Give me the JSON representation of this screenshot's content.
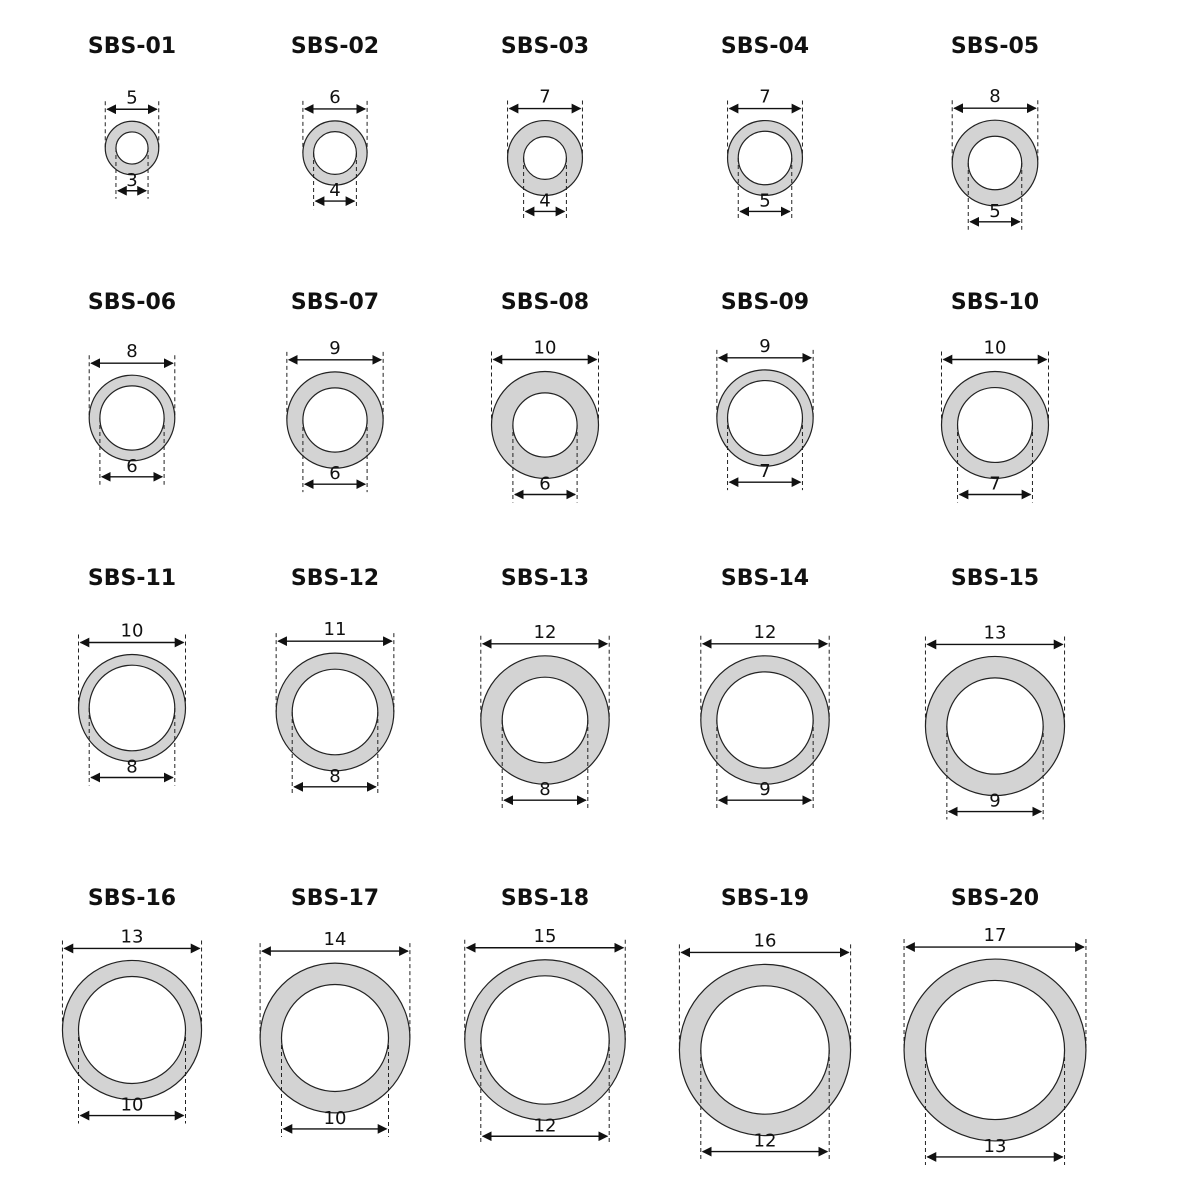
{
  "items": [
    {
      "code": "SBS-01",
      "outer": 5,
      "inner": 3
    },
    {
      "code": "SBS-02",
      "outer": 6,
      "inner": 4
    },
    {
      "code": "SBS-03",
      "outer": 7,
      "inner": 4
    },
    {
      "code": "SBS-04",
      "outer": 7,
      "inner": 5
    },
    {
      "code": "SBS-05",
      "outer": 8,
      "inner": 5
    },
    {
      "code": "SBS-06",
      "outer": 8,
      "inner": 6
    },
    {
      "code": "SBS-07",
      "outer": 9,
      "inner": 6
    },
    {
      "code": "SBS-08",
      "outer": 10,
      "inner": 6
    },
    {
      "code": "SBS-09",
      "outer": 9,
      "inner": 7
    },
    {
      "code": "SBS-10",
      "outer": 10,
      "inner": 7
    },
    {
      "code": "SBS-11",
      "outer": 10,
      "inner": 8
    },
    {
      "code": "SBS-12",
      "outer": 11,
      "inner": 8
    },
    {
      "code": "SBS-13",
      "outer": 12,
      "inner": 8
    },
    {
      "code": "SBS-14",
      "outer": 12,
      "inner": 9
    },
    {
      "code": "SBS-15",
      "outer": 13,
      "inner": 9
    },
    {
      "code": "SBS-16",
      "outer": 13,
      "inner": 10
    },
    {
      "code": "SBS-17",
      "outer": 14,
      "inner": 10
    },
    {
      "code": "SBS-18",
      "outer": 15,
      "inner": 12
    },
    {
      "code": "SBS-19",
      "outer": 16,
      "inner": 12
    },
    {
      "code": "SBS-20",
      "outer": 17,
      "inner": 13
    }
  ],
  "colors": {
    "ring": "#d3d3d3",
    "outline": "#222222"
  }
}
